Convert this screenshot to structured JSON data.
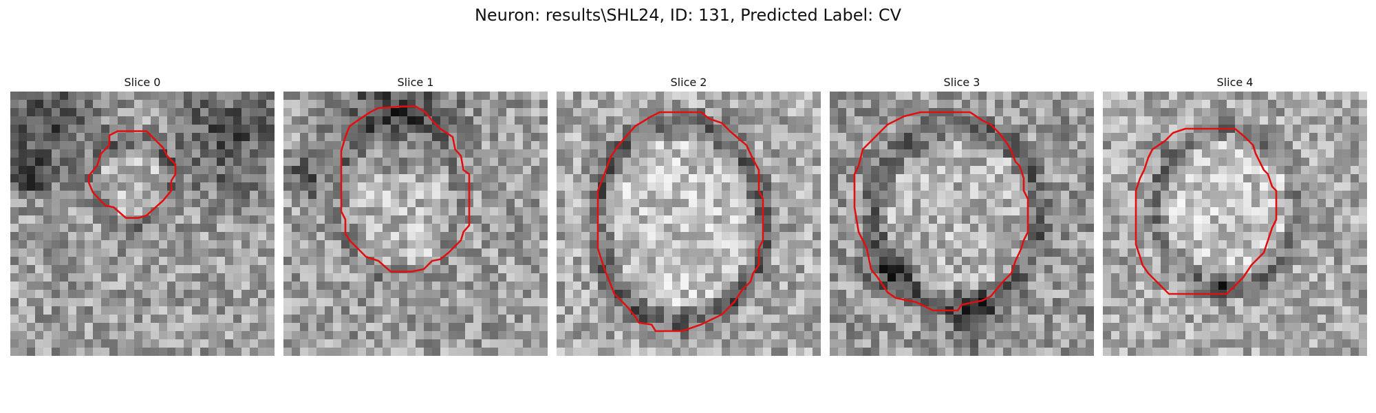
{
  "figure": {
    "title": "Neuron: results\\SHL24, ID: 131, Predicted Label: CV"
  },
  "panels": [
    {
      "title": "Slice 0"
    },
    {
      "title": "Slice 1"
    },
    {
      "title": "Slice 2"
    },
    {
      "title": "Slice 3"
    },
    {
      "title": "Slice 4"
    }
  ],
  "colors": {
    "contour": "#e01010",
    "background": "#ffffff"
  }
}
